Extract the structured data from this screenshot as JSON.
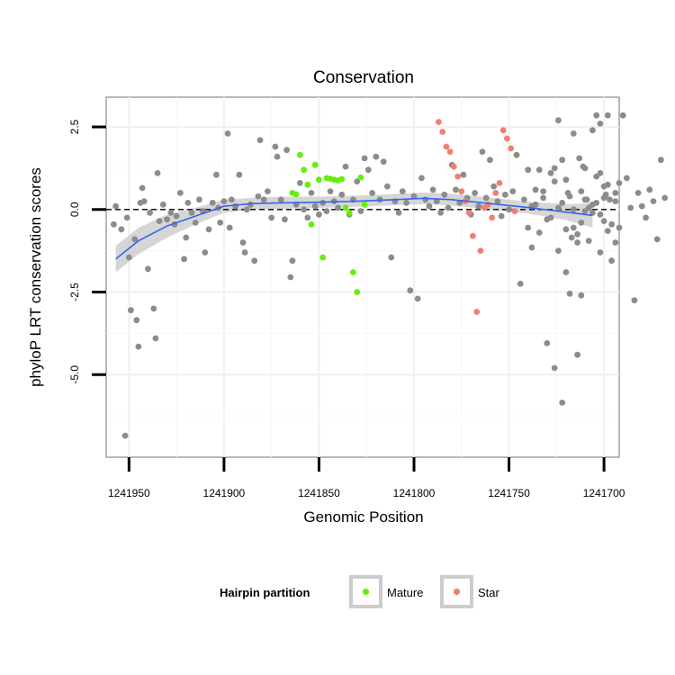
{
  "chart_data": {
    "type": "scatter",
    "title": "Conservation",
    "xlabel": "Genomic Position",
    "ylabel": "phyloP LRT conservation scores",
    "x_reversed": true,
    "xlim": [
      1241962,
      1241692
    ],
    "ylim": [
      -7.5,
      3.4
    ],
    "x_ticks": [
      1241950,
      1241900,
      1241850,
      1241800,
      1241750,
      1241700
    ],
    "x_tick_labels": [
      "1241950",
      "1241900",
      "1241850",
      "1241800",
      "1241750",
      "1241700"
    ],
    "y_ticks": [
      -5.0,
      -2.5,
      0.0,
      2.5
    ],
    "y_tick_labels": [
      "-5.0",
      "-2.5",
      "0.0",
      "2.5"
    ],
    "grid": true,
    "reference_line": {
      "y": 0,
      "style": "dashed",
      "color": "#000000"
    },
    "legend": {
      "title": "Hairpin partition",
      "placement": "bottom",
      "entries": [
        {
          "label": "Mature",
          "color": "#66ee11"
        },
        {
          "label": "Star",
          "color": "#f08070"
        }
      ]
    },
    "colors": {
      "other": "#8c8c8c",
      "Mature": "#66ee11",
      "Star": "#f08070",
      "smooth": "#3366ee",
      "band": "#c8c8c8"
    },
    "smooth": {
      "x": [
        1241957,
        1241945,
        1241930,
        1241915,
        1241900,
        1241885,
        1241870,
        1241850,
        1241830,
        1241810,
        1241795,
        1241780,
        1241760,
        1241740,
        1241720,
        1241706
      ],
      "y": [
        -1.5,
        -0.95,
        -0.5,
        -0.2,
        0.1,
        0.18,
        0.2,
        0.22,
        0.25,
        0.3,
        0.34,
        0.3,
        0.18,
        0.06,
        -0.08,
        -0.18
      ],
      "lower": [
        -1.9,
        -1.35,
        -0.85,
        -0.45,
        -0.1,
        0.0,
        0.02,
        0.05,
        0.08,
        0.13,
        0.16,
        0.12,
        0.0,
        -0.12,
        -0.32,
        -0.55
      ],
      "upper": [
        -1.1,
        -0.55,
        -0.15,
        0.05,
        0.3,
        0.36,
        0.38,
        0.39,
        0.42,
        0.47,
        0.52,
        0.48,
        0.36,
        0.24,
        0.16,
        0.19
      ]
    },
    "series": [
      {
        "name": "Mature",
        "points": [
          [
            1241864,
            0.5
          ],
          [
            1241862,
            0.46
          ],
          [
            1241860,
            1.65
          ],
          [
            1241858,
            1.2
          ],
          [
            1241856,
            0.75
          ],
          [
            1241854,
            -0.45
          ],
          [
            1241852,
            1.35
          ],
          [
            1241850,
            0.9
          ],
          [
            1241848,
            -1.45
          ],
          [
            1241846,
            0.95
          ],
          [
            1241844,
            0.93
          ],
          [
            1241842,
            0.9
          ],
          [
            1241840,
            0.88
          ],
          [
            1241838,
            0.92
          ],
          [
            1241836,
            0.05
          ],
          [
            1241834,
            -0.1
          ],
          [
            1241832,
            -1.9
          ],
          [
            1241830,
            -2.5
          ],
          [
            1241828,
            0.97
          ],
          [
            1241826,
            0.15
          ]
        ]
      },
      {
        "name": "Star",
        "points": [
          [
            1241787,
            2.65
          ],
          [
            1241785,
            2.35
          ],
          [
            1241783,
            1.9
          ],
          [
            1241781,
            1.75
          ],
          [
            1241779,
            1.3
          ],
          [
            1241777,
            1.0
          ],
          [
            1241775,
            0.55
          ],
          [
            1241773,
            0.25
          ],
          [
            1241771,
            -0.1
          ],
          [
            1241769,
            -0.8
          ],
          [
            1241767,
            -3.1
          ],
          [
            1241765,
            -1.25
          ],
          [
            1241763,
            0.05
          ],
          [
            1241761,
            0.15
          ],
          [
            1241759,
            -0.25
          ],
          [
            1241757,
            0.5
          ],
          [
            1241755,
            0.8
          ],
          [
            1241753,
            2.4
          ],
          [
            1241751,
            2.15
          ],
          [
            1241749,
            1.85
          ],
          [
            1241747,
            -0.05
          ]
        ]
      },
      {
        "name": "",
        "points": [
          [
            1241958,
            -0.45
          ],
          [
            1241957,
            0.1
          ],
          [
            1241954,
            -0.6
          ],
          [
            1241952,
            -6.85
          ],
          [
            1241951,
            -0.25
          ],
          [
            1241950,
            -1.45
          ],
          [
            1241949,
            -3.05
          ],
          [
            1241947,
            -0.9
          ],
          [
            1241946,
            -3.35
          ],
          [
            1241945,
            -4.15
          ],
          [
            1241944,
            0.2
          ],
          [
            1241943,
            0.65
          ],
          [
            1241942,
            0.25
          ],
          [
            1241940,
            -1.8
          ],
          [
            1241939,
            -0.1
          ],
          [
            1241937,
            -3.0
          ],
          [
            1241936,
            -3.9
          ],
          [
            1241935,
            1.1
          ],
          [
            1241934,
            -0.35
          ],
          [
            1241932,
            0.15
          ],
          [
            1241930,
            -0.3
          ],
          [
            1241928,
            -0.1
          ],
          [
            1241926,
            -0.45
          ],
          [
            1241925,
            -0.2
          ],
          [
            1241923,
            0.5
          ],
          [
            1241921,
            -1.5
          ],
          [
            1241920,
            -0.85
          ],
          [
            1241919,
            0.2
          ],
          [
            1241917,
            -0.1
          ],
          [
            1241915,
            -0.4
          ],
          [
            1241913,
            0.3
          ],
          [
            1241911,
            -0.05
          ],
          [
            1241910,
            -1.3
          ],
          [
            1241908,
            -0.6
          ],
          [
            1241906,
            0.2
          ],
          [
            1241904,
            1.05
          ],
          [
            1241903,
            0.05
          ],
          [
            1241902,
            -0.4
          ],
          [
            1241900,
            0.25
          ],
          [
            1241898,
            2.3
          ],
          [
            1241897,
            -0.55
          ],
          [
            1241896,
            0.3
          ],
          [
            1241894,
            0.1
          ],
          [
            1241892,
            1.05
          ],
          [
            1241890,
            -1.0
          ],
          [
            1241889,
            -1.3
          ],
          [
            1241888,
            0.0
          ],
          [
            1241886,
            0.15
          ],
          [
            1241884,
            -1.55
          ],
          [
            1241882,
            0.4
          ],
          [
            1241881,
            2.1
          ],
          [
            1241879,
            0.3
          ],
          [
            1241877,
            0.55
          ],
          [
            1241875,
            -0.25
          ],
          [
            1241873,
            1.9
          ],
          [
            1241872,
            1.6
          ],
          [
            1241870,
            0.3
          ],
          [
            1241868,
            -0.3
          ],
          [
            1241867,
            1.8
          ],
          [
            1241865,
            -2.05
          ],
          [
            1241864,
            -1.55
          ],
          [
            1241862,
            0.15
          ],
          [
            1241860,
            0.8
          ],
          [
            1241858,
            0.0
          ],
          [
            1241856,
            -0.25
          ],
          [
            1241854,
            0.5
          ],
          [
            1241852,
            0.1
          ],
          [
            1241850,
            -0.15
          ],
          [
            1241848,
            0.2
          ],
          [
            1241846,
            -0.05
          ],
          [
            1241844,
            0.55
          ],
          [
            1241842,
            0.25
          ],
          [
            1241840,
            0.05
          ],
          [
            1241838,
            0.45
          ],
          [
            1241836,
            1.3
          ],
          [
            1241834,
            -0.15
          ],
          [
            1241832,
            0.3
          ],
          [
            1241830,
            0.85
          ],
          [
            1241828,
            -0.05
          ],
          [
            1241826,
            1.55
          ],
          [
            1241824,
            1.2
          ],
          [
            1241822,
            0.5
          ],
          [
            1241820,
            1.6
          ],
          [
            1241818,
            0.3
          ],
          [
            1241816,
            1.45
          ],
          [
            1241814,
            0.7
          ],
          [
            1241812,
            -1.45
          ],
          [
            1241810,
            0.25
          ],
          [
            1241808,
            -0.1
          ],
          [
            1241806,
            0.55
          ],
          [
            1241804,
            0.2
          ],
          [
            1241802,
            -2.45
          ],
          [
            1241800,
            0.4
          ],
          [
            1241798,
            -2.7
          ],
          [
            1241796,
            0.95
          ],
          [
            1241794,
            0.3
          ],
          [
            1241792,
            0.1
          ],
          [
            1241790,
            0.6
          ],
          [
            1241788,
            0.25
          ],
          [
            1241786,
            -0.1
          ],
          [
            1241784,
            0.45
          ],
          [
            1241782,
            0.05
          ],
          [
            1241780,
            1.35
          ],
          [
            1241778,
            0.6
          ],
          [
            1241776,
            0.2
          ],
          [
            1241774,
            1.05
          ],
          [
            1241772,
            0.35
          ],
          [
            1241770,
            -0.15
          ],
          [
            1241768,
            0.5
          ],
          [
            1241766,
            0.1
          ],
          [
            1241764,
            1.75
          ],
          [
            1241762,
            0.35
          ],
          [
            1241760,
            1.5
          ],
          [
            1241758,
            0.7
          ],
          [
            1241756,
            0.25
          ],
          [
            1241754,
            -0.2
          ],
          [
            1241752,
            0.45
          ],
          [
            1241750,
            0.0
          ],
          [
            1241748,
            0.55
          ],
          [
            1241746,
            1.65
          ],
          [
            1241744,
            -2.25
          ],
          [
            1241742,
            0.3
          ],
          [
            1241740,
            1.2
          ],
          [
            1241738,
            0.1
          ],
          [
            1241736,
            0.6
          ],
          [
            1241734,
            1.2
          ],
          [
            1241732,
            0.35
          ],
          [
            1241730,
            -0.3
          ],
          [
            1241728,
            1.1
          ],
          [
            1241726,
            1.25
          ],
          [
            1241724,
            0.05
          ],
          [
            1241722,
            1.5
          ],
          [
            1241720,
            0.9
          ],
          [
            1241718,
            0.4
          ],
          [
            1241716,
            2.3
          ],
          [
            1241714,
            -0.75
          ],
          [
            1241712,
            0.55
          ],
          [
            1241710,
            1.25
          ],
          [
            1241708,
            0.05
          ],
          [
            1241706,
            2.4
          ],
          [
            1241704,
            0.2
          ],
          [
            1241702,
            1.1
          ],
          [
            1241700,
            -0.35
          ],
          [
            1241698,
            0.75
          ],
          [
            1241696,
            -0.45
          ],
          [
            1241694,
            -1.0
          ],
          [
            1241692,
            0.8
          ],
          [
            1241730,
            -4.05
          ],
          [
            1241720,
            -0.6
          ],
          [
            1241716,
            0.0
          ],
          [
            1241714,
            -1.0
          ],
          [
            1241712,
            -0.4
          ],
          [
            1241710,
            -0.05
          ],
          [
            1241706,
            0.15
          ],
          [
            1241702,
            -0.15
          ],
          [
            1241699,
            0.45
          ],
          [
            1241697,
            0.3
          ],
          [
            1241740,
            -0.55
          ],
          [
            1241738,
            -1.15
          ],
          [
            1241736,
            0.15
          ],
          [
            1241734,
            -0.7
          ],
          [
            1241732,
            0.55
          ],
          [
            1241728,
            -0.25
          ],
          [
            1241726,
            0.85
          ],
          [
            1241724,
            -1.25
          ],
          [
            1241722,
            0.2
          ],
          [
            1241719,
            0.5
          ],
          [
            1241717,
            -0.85
          ],
          [
            1241712,
            -2.6
          ],
          [
            1241710,
            0.3
          ],
          [
            1241708,
            -0.95
          ],
          [
            1241706,
            -0.1
          ],
          [
            1241704,
            1.0
          ],
          [
            1241702,
            -1.3
          ],
          [
            1241700,
            0.35
          ],
          [
            1241698,
            -0.65
          ],
          [
            1241696,
            -1.55
          ],
          [
            1241694,
            0.5
          ],
          [
            1241726,
            -4.8
          ],
          [
            1241724,
            2.7
          ],
          [
            1241722,
            -5.85
          ],
          [
            1241720,
            -1.9
          ],
          [
            1241718,
            -2.55
          ],
          [
            1241716,
            -0.55
          ],
          [
            1241714,
            -4.4
          ],
          [
            1241713,
            1.55
          ],
          [
            1241711,
            1.3
          ],
          [
            1241709,
            0.3
          ],
          [
            1241704,
            2.85
          ],
          [
            1241702,
            2.6
          ],
          [
            1241700,
            0.7
          ],
          [
            1241698,
            2.85
          ],
          [
            1241694,
            0.25
          ],
          [
            1241692,
            -0.55
          ],
          [
            1241690,
            2.85
          ],
          [
            1241688,
            0.95
          ],
          [
            1241686,
            0.05
          ],
          [
            1241684,
            -2.75
          ],
          [
            1241682,
            0.5
          ],
          [
            1241680,
            0.1
          ],
          [
            1241678,
            -0.25
          ],
          [
            1241676,
            0.6
          ],
          [
            1241674,
            0.25
          ],
          [
            1241672,
            -0.9
          ],
          [
            1241670,
            1.5
          ],
          [
            1241668,
            0.35
          ]
        ]
      }
    ]
  }
}
